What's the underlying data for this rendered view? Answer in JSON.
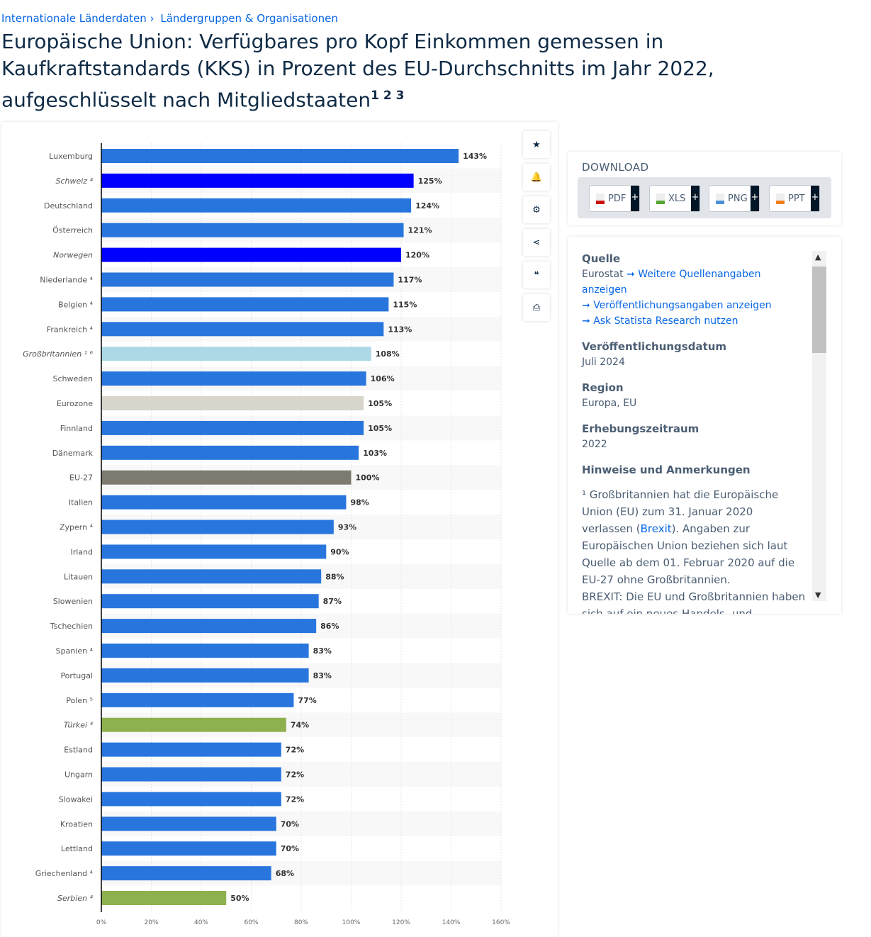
{
  "breadcrumb": [
    "Internationale Länderdaten",
    "Ländergruppen & Organisationen"
  ],
  "title": "Europäische Union: Verfügbares pro Kopf Einkommen gemessen in Kaufkraftstandards (KKS) in Prozent des EU-Durchschnitts im Jahr 2022, aufgeschlüsselt nach Mitgliedstaaten",
  "title_footnotes": "1 2 3",
  "tools": [
    {
      "icon": "star-icon",
      "glyph": "★"
    },
    {
      "icon": "bell-icon",
      "glyph": "🔔"
    },
    {
      "icon": "gear-icon",
      "glyph": "⚙"
    },
    {
      "icon": "share-icon",
      "glyph": "⋖"
    },
    {
      "icon": "quote-icon",
      "glyph": "❝"
    },
    {
      "icon": "print-icon",
      "glyph": "⎙"
    }
  ],
  "download": {
    "title": "DOWNLOAD",
    "buttons": [
      {
        "label": "PDF",
        "color": "#cc1111"
      },
      {
        "label": "XLS",
        "color": "#55a630"
      },
      {
        "label": "PNG",
        "color": "#4a90d9"
      },
      {
        "label": "PPT",
        "color": "#f07d1a"
      }
    ],
    "plus": "+"
  },
  "info": {
    "source_h": "Quelle",
    "source": "Eurostat",
    "more_source": "Weitere Quellenangaben anzeigen",
    "pub_info": "Veröffentlichungsangaben anzeigen",
    "ask": "Ask Statista Research nutzen",
    "date_h": "Veröffentlichungsdatum",
    "date": "Juli 2024",
    "region_h": "Region",
    "region": "Europa, EU",
    "period_h": "Erhebungszeitraum",
    "period": "2022",
    "notes_h": "Hinweise und Anmerkungen",
    "note1_pre": "¹ Großbritannien hat die Europäische Union (EU) zum 31. Januar 2020 verlassen (",
    "note1_link": "Brexit",
    "note1_post": "). Angaben zur Europäischen Union beziehen sich laut Quelle ab dem 01. Februar 2020 auf die EU-27 ohne Großbritannien.",
    "note2": "BREXIT: Die EU und Großbritannien haben sich auf ein neues Handels- und Kooperationsabkommen verständigt, das"
  },
  "chart_data": {
    "type": "bar",
    "orientation": "horizontal",
    "categories": [
      "Luxemburg",
      "Schweiz ⁴",
      "Deutschland",
      "Österreich",
      "Norwegen",
      "Niederlande ⁴",
      "Belgien ⁴",
      "Frankreich ⁴",
      "Großbritannien ¹ ⁶",
      "Schweden",
      "Eurozone",
      "Finnland",
      "Dänemark",
      "EU-27",
      "Italien",
      "Zypern ⁴",
      "Irland",
      "Litauen",
      "Slowenien",
      "Tschechien",
      "Spanien ⁴",
      "Portugal",
      "Polen ⁵",
      "Türkei ⁴",
      "Estland",
      "Ungarn",
      "Slowakei",
      "Kroatien",
      "Lettland",
      "Griechenland ⁴",
      "Serbien ⁴"
    ],
    "values": [
      143,
      125,
      124,
      121,
      120,
      117,
      115,
      113,
      108,
      106,
      105,
      105,
      103,
      100,
      98,
      93,
      90,
      88,
      87,
      86,
      83,
      83,
      77,
      74,
      72,
      72,
      72,
      70,
      70,
      68,
      50
    ],
    "italic": [
      false,
      true,
      false,
      false,
      true,
      false,
      false,
      false,
      true,
      false,
      false,
      false,
      false,
      false,
      false,
      false,
      false,
      false,
      false,
      false,
      false,
      false,
      false,
      true,
      false,
      false,
      false,
      false,
      false,
      false,
      true
    ],
    "colors": [
      "#2876dd",
      "#0000ff",
      "#2876dd",
      "#2876dd",
      "#0000ff",
      "#2876dd",
      "#2876dd",
      "#2876dd",
      "#add8e6",
      "#2876dd",
      "#d8d5cc",
      "#2876dd",
      "#2876dd",
      "#7d7b70",
      "#2876dd",
      "#2876dd",
      "#2876dd",
      "#2876dd",
      "#2876dd",
      "#2876dd",
      "#2876dd",
      "#2876dd",
      "#2876dd",
      "#8fb04e",
      "#2876dd",
      "#2876dd",
      "#2876dd",
      "#2876dd",
      "#2876dd",
      "#2876dd",
      "#8fb04e"
    ],
    "value_suffix": "%",
    "xticks": [
      "0%",
      "20%",
      "40%",
      "60%",
      "80%",
      "100%",
      "120%",
      "140%",
      "160%"
    ],
    "xlim": [
      0,
      160
    ],
    "grid": true,
    "legend": "none"
  }
}
